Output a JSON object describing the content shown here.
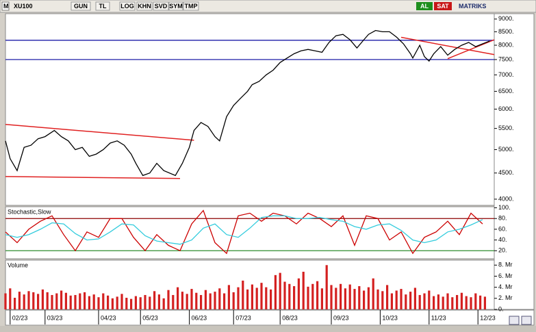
{
  "toolbar": {
    "symbol": "XU100",
    "buttons": [
      "GUN",
      "TL",
      "LOG",
      "KHN",
      "SVD",
      "SYM",
      "TMP"
    ],
    "buy": "AL",
    "sell": "SAT",
    "brand": "MATRIKS"
  },
  "chart_data": [
    {
      "type": "line",
      "title": "XU100",
      "log": true,
      "color": "#000000",
      "x": [
        0,
        2,
        5,
        8,
        11,
        14,
        17,
        21,
        24,
        27,
        30,
        33,
        36,
        39,
        42,
        45,
        48,
        51,
        54,
        56,
        59,
        62,
        65,
        68,
        73,
        76,
        79,
        81,
        84,
        87,
        90,
        92,
        95,
        98,
        101,
        104,
        106,
        109,
        112,
        115,
        118,
        121,
        124,
        127,
        130,
        133,
        136,
        139,
        142,
        145,
        148,
        151,
        154,
        156,
        159,
        162,
        165,
        168,
        171,
        174,
        175,
        178,
        180,
        182,
        184,
        187,
        190,
        193,
        196,
        199,
        202,
        205,
        208
      ],
      "values": [
        5200,
        4800,
        4550,
        5050,
        5100,
        5250,
        5300,
        5450,
        5300,
        5200,
        5000,
        5050,
        4850,
        4900,
        5000,
        5150,
        5200,
        5100,
        4900,
        4700,
        4450,
        4500,
        4700,
        4550,
        4450,
        4700,
        5050,
        5450,
        5650,
        5550,
        5300,
        5200,
        5800,
        6100,
        6300,
        6500,
        6700,
        6800,
        7000,
        7150,
        7400,
        7550,
        7700,
        7800,
        7850,
        7800,
        7750,
        8100,
        8350,
        8400,
        8200,
        7900,
        8200,
        8400,
        8550,
        8500,
        8500,
        8300,
        8050,
        7700,
        7550,
        8000,
        7600,
        7450,
        7700,
        7950,
        7650,
        7850,
        8000,
        8100,
        7950,
        8050,
        8150
      ],
      "xlim": [
        0,
        210
      ],
      "ylim": [
        3890,
        9220
      ],
      "yticks": [
        {
          "value": 4000,
          "label": "4000."
        },
        {
          "value": 4500,
          "label": "4500."
        },
        {
          "value": 5000,
          "label": "5000."
        },
        {
          "value": 5500,
          "label": "5500."
        },
        {
          "value": 6000,
          "label": "6000."
        },
        {
          "value": 6500,
          "label": "6500."
        },
        {
          "value": 7000,
          "label": "7000."
        },
        {
          "value": 7500,
          "label": "7500."
        },
        {
          "value": 8000,
          "label": "8000."
        },
        {
          "value": 8500,
          "label": "8500."
        },
        {
          "value": 9000,
          "label": "9000."
        }
      ],
      "hlines": [
        {
          "value": 8180,
          "color": "#1c1ca8"
        },
        {
          "value": 7500,
          "color": "#1c1ca8"
        }
      ],
      "trendlines": [
        {
          "color": "#e02020",
          "x": [
            0,
            81
          ],
          "y": [
            5600,
            5215
          ]
        },
        {
          "color": "#e02020",
          "x": [
            0,
            75
          ],
          "y": [
            4430,
            4390
          ]
        },
        {
          "color": "#e02020",
          "x": [
            170,
            210
          ],
          "y": [
            8290,
            7670
          ]
        },
        {
          "color": "#e02020",
          "x": [
            190,
            210
          ],
          "y": [
            7530,
            8200
          ]
        }
      ]
    },
    {
      "type": "line",
      "title": "Stochastic,Slow",
      "x": [
        0,
        5,
        10,
        15,
        20,
        25,
        30,
        35,
        40,
        45,
        50,
        55,
        60,
        65,
        70,
        75,
        80,
        85,
        90,
        95,
        100,
        105,
        110,
        115,
        120,
        125,
        130,
        135,
        140,
        145,
        150,
        155,
        160,
        165,
        170,
        175,
        180,
        185,
        190,
        195,
        200,
        205
      ],
      "series": [
        {
          "color": "#cc0000",
          "values": [
            55,
            35,
            60,
            75,
            85,
            50,
            20,
            55,
            45,
            80,
            80,
            45,
            20,
            50,
            30,
            20,
            70,
            95,
            35,
            15,
            85,
            90,
            75,
            90,
            85,
            70,
            90,
            80,
            65,
            85,
            30,
            85,
            80,
            40,
            55,
            15,
            45,
            55,
            75,
            50,
            90,
            70
          ]
        },
        {
          "color": "#33ccdd",
          "values": [
            50,
            45,
            50,
            60,
            72,
            70,
            52,
            40,
            42,
            55,
            70,
            68,
            48,
            38,
            35,
            32,
            40,
            62,
            70,
            50,
            45,
            62,
            82,
            85,
            85,
            80,
            80,
            82,
            78,
            75,
            65,
            60,
            68,
            70,
            58,
            40,
            35,
            40,
            55,
            60,
            68,
            78
          ]
        }
      ],
      "xlim": [
        0,
        210
      ],
      "ylim": [
        5,
        102
      ],
      "yticks": [
        {
          "value": 20,
          "label": "20."
        },
        {
          "value": 40,
          "label": "40."
        },
        {
          "value": 60,
          "label": "60."
        },
        {
          "value": 80,
          "label": "80."
        },
        {
          "value": 100,
          "label": "100."
        }
      ],
      "hlines": [
        {
          "value": 80,
          "color": "#8b0000"
        },
        {
          "value": 20,
          "color": "#2e8b2e"
        }
      ]
    },
    {
      "type": "bar",
      "title": "Volume",
      "color": "#d42020",
      "x": [
        0,
        2,
        4,
        6,
        8,
        10,
        12,
        14,
        16,
        18,
        20,
        22,
        24,
        26,
        28,
        30,
        32,
        34,
        36,
        38,
        40,
        42,
        44,
        46,
        48,
        50,
        52,
        54,
        56,
        58,
        60,
        62,
        64,
        66,
        68,
        70,
        72,
        74,
        76,
        78,
        80,
        82,
        84,
        86,
        88,
        90,
        92,
        94,
        96,
        98,
        100,
        102,
        104,
        106,
        108,
        110,
        112,
        114,
        116,
        118,
        120,
        122,
        124,
        126,
        128,
        130,
        132,
        134,
        136,
        138,
        140,
        142,
        144,
        146,
        148,
        150,
        152,
        154,
        156,
        158,
        160,
        162,
        164,
        166,
        168,
        170,
        172,
        174,
        176,
        178,
        180,
        182,
        184,
        186,
        188,
        190,
        192,
        194,
        196,
        198,
        200,
        202,
        204,
        206
      ],
      "values": [
        2.9,
        3.8,
        2.1,
        3.2,
        2.7,
        3.3,
        3.1,
        2.8,
        3.6,
        3.1,
        2.6,
        2.9,
        3.4,
        3.0,
        2.5,
        2.6,
        2.9,
        3.1,
        2.4,
        2.7,
        2.2,
        2.9,
        2.5,
        2.0,
        2.3,
        2.8,
        2.1,
        1.9,
        2.4,
        2.2,
        2.6,
        2.3,
        3.3,
        2.7,
        2.0,
        3.5,
        2.6,
        4.0,
        3.2,
        2.8,
        3.7,
        3.0,
        2.6,
        3.5,
        2.9,
        3.2,
        3.8,
        2.9,
        4.4,
        3.1,
        4.0,
        5.2,
        3.6,
        4.5,
        3.9,
        4.8,
        4.0,
        3.6,
        6.2,
        6.6,
        5.0,
        4.6,
        4.2,
        5.6,
        6.8,
        4.1,
        4.6,
        5.1,
        3.8,
        8.0,
        4.4,
        3.9,
        4.6,
        3.8,
        4.5,
        3.7,
        4.2,
        3.4,
        4.0,
        5.6,
        3.6,
        3.3,
        4.4,
        2.9,
        3.4,
        3.7,
        2.7,
        3.2,
        3.9,
        2.6,
        2.9,
        3.4,
        2.4,
        2.7,
        2.3,
        2.9,
        2.2,
        2.6,
        3.0,
        2.4,
        2.2,
        2.9,
        2.5,
        2.3
      ],
      "xlim": [
        0,
        210
      ],
      "ylim": [
        0,
        8.9
      ],
      "yticks": [
        {
          "value": 0,
          "label": "0."
        },
        {
          "value": 2,
          "label": "2. Mr"
        },
        {
          "value": 4,
          "label": "4. Mr"
        },
        {
          "value": 6,
          "label": "6. Mr"
        },
        {
          "value": 8,
          "label": "8. Mr"
        }
      ],
      "xticks": [
        {
          "value": 2,
          "label": "02/23"
        },
        {
          "value": 17,
          "label": "03/23"
        },
        {
          "value": 40,
          "label": "04/23"
        },
        {
          "value": 58,
          "label": "05/23"
        },
        {
          "value": 79,
          "label": "06/23"
        },
        {
          "value": 98,
          "label": "07/23"
        },
        {
          "value": 118,
          "label": "08/23"
        },
        {
          "value": 140,
          "label": "09/23"
        },
        {
          "value": 161,
          "label": "10/23"
        },
        {
          "value": 182,
          "label": "11/23"
        },
        {
          "value": 203,
          "label": "12/23"
        }
      ]
    }
  ]
}
